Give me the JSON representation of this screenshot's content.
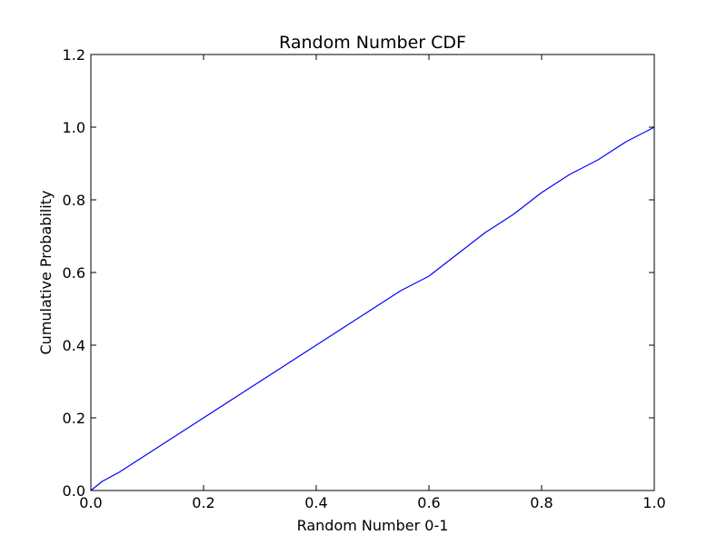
{
  "chart_data": {
    "type": "line",
    "title": "Random Number CDF",
    "xlabel": "Random Number 0-1",
    "ylabel": "Cumulative Probability",
    "xlim": [
      0.0,
      1.0
    ],
    "ylim": [
      0.0,
      1.2
    ],
    "xticks": [
      "0.0",
      "0.2",
      "0.4",
      "0.6",
      "0.8",
      "1.0"
    ],
    "yticks": [
      "0.0",
      "0.2",
      "0.4",
      "0.6",
      "0.8",
      "1.0",
      "1.2"
    ],
    "grid": false,
    "legend": "none",
    "colors": {
      "line": "#0000ff",
      "axes": "#000000",
      "background": "#ffffff"
    },
    "series": [
      {
        "x": [
          0.0,
          0.02,
          0.05,
          0.1,
          0.15,
          0.2,
          0.25,
          0.3,
          0.35,
          0.4,
          0.45,
          0.5,
          0.55,
          0.6,
          0.65,
          0.7,
          0.75,
          0.8,
          0.85,
          0.9,
          0.95,
          1.0
        ],
        "y": [
          0.0,
          0.025,
          0.05,
          0.1,
          0.15,
          0.2,
          0.25,
          0.3,
          0.35,
          0.4,
          0.45,
          0.5,
          0.55,
          0.59,
          0.65,
          0.71,
          0.76,
          0.82,
          0.87,
          0.91,
          0.96,
          1.0
        ]
      }
    ]
  }
}
